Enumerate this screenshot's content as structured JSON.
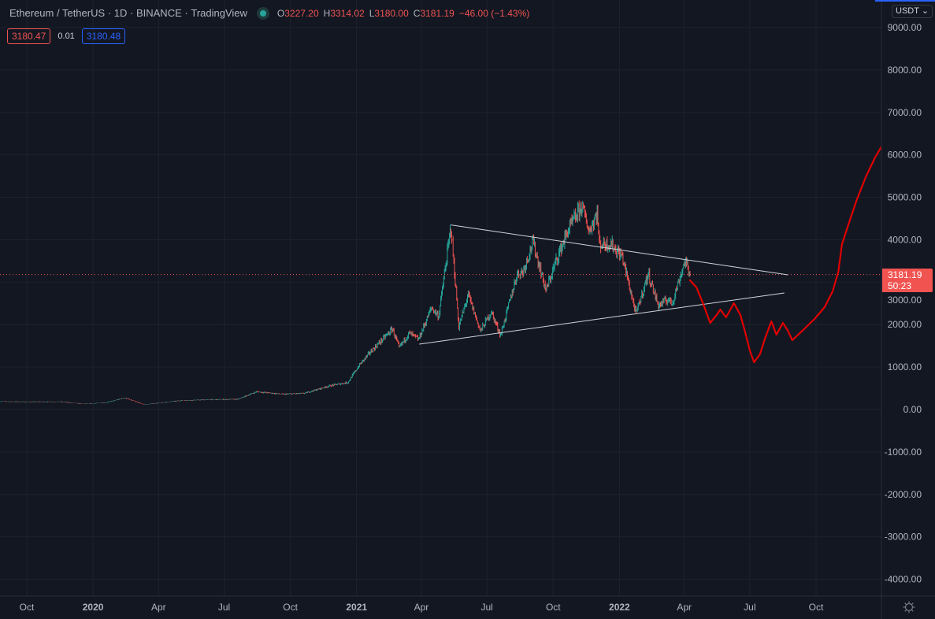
{
  "header": {
    "symbol": "Ethereum / TetherUS",
    "interval": "1D",
    "exchange": "BINANCE",
    "source": "TradingView",
    "sep": "·",
    "ohlc": {
      "o_label": "O",
      "o": "3227.20",
      "h_label": "H",
      "h": "3314.02",
      "l_label": "L",
      "l": "3180.00",
      "c_label": "C",
      "c": "3181.19"
    },
    "change": "−46.00 (−1.43%)"
  },
  "quotes": {
    "sell": "3180.47",
    "spread": "0.01",
    "buy": "3180.48"
  },
  "currency_button": "USDT",
  "last_price": {
    "price": "3181.19",
    "countdown": "50:23"
  },
  "colors": {
    "bg": "#131722",
    "up": "#26a69a",
    "down": "#ef5350",
    "forecast": "#e00000",
    "trend": "#d1d4dc"
  },
  "chart_data": {
    "type": "candlestick",
    "title": "Ethereum / TetherUS 1D BINANCE",
    "y_ticks": [
      "9000.00",
      "8000.00",
      "7000.00",
      "6000.00",
      "5000.00",
      "4000.00",
      "3000.00",
      "2000.00",
      "1000.00",
      "0.00",
      "-1000.00",
      "-2000.00",
      "-3000.00",
      "-4000.00"
    ],
    "y_tick_values": [
      9000,
      8000,
      7000,
      6000,
      5000,
      4000,
      3000,
      2000,
      1000,
      0,
      -1000,
      -2000,
      -3000,
      -4000
    ],
    "x_ticks": [
      {
        "label": "Oct",
        "date": "2019-10-01"
      },
      {
        "label": "2020",
        "date": "2020-01-01"
      },
      {
        "label": "Apr",
        "date": "2020-04-01"
      },
      {
        "label": "Jul",
        "date": "2020-07-01"
      },
      {
        "label": "Oct",
        "date": "2020-10-01"
      },
      {
        "label": "2021",
        "date": "2021-01-01"
      },
      {
        "label": "Apr",
        "date": "2021-04-01"
      },
      {
        "label": "Jul",
        "date": "2021-07-01"
      },
      {
        "label": "Oct",
        "date": "2021-10-01"
      },
      {
        "label": "2022",
        "date": "2022-01-01"
      },
      {
        "label": "Apr",
        "date": "2022-04-01"
      },
      {
        "label": "Jul",
        "date": "2022-07-01"
      },
      {
        "label": "Oct",
        "date": "2022-10-01"
      }
    ],
    "ylim": [
      -4300,
      9300
    ],
    "xlim": [
      "2019-08-24",
      "2023-01-01"
    ],
    "price_path": [
      [
        "2019-08-24",
        190
      ],
      [
        "2019-10-01",
        180
      ],
      [
        "2019-11-15",
        185
      ],
      [
        "2019-12-20",
        130
      ],
      [
        "2020-01-20",
        165
      ],
      [
        "2020-02-14",
        275
      ],
      [
        "2020-03-12",
        115
      ],
      [
        "2020-05-01",
        210
      ],
      [
        "2020-06-15",
        235
      ],
      [
        "2020-07-20",
        240
      ],
      [
        "2020-08-15",
        420
      ],
      [
        "2020-09-20",
        360
      ],
      [
        "2020-10-20",
        380
      ],
      [
        "2020-11-25",
        560
      ],
      [
        "2020-12-20",
        640
      ],
      [
        "2021-01-05",
        1050
      ],
      [
        "2021-01-20",
        1350
      ],
      [
        "2021-02-20",
        1900
      ],
      [
        "2021-03-01",
        1450
      ],
      [
        "2021-03-15",
        1800
      ],
      [
        "2021-03-28",
        1650
      ],
      [
        "2021-04-15",
        2400
      ],
      [
        "2021-04-25",
        2200
      ],
      [
        "2021-05-12",
        4300
      ],
      [
        "2021-05-23",
        1950
      ],
      [
        "2021-06-05",
        2700
      ],
      [
        "2021-06-22",
        1850
      ],
      [
        "2021-07-07",
        2300
      ],
      [
        "2021-07-20",
        1750
      ],
      [
        "2021-08-12",
        3200
      ],
      [
        "2021-08-20",
        3250
      ],
      [
        "2021-09-03",
        3950
      ],
      [
        "2021-09-21",
        2800
      ],
      [
        "2021-10-05",
        3500
      ],
      [
        "2021-10-21",
        4200
      ],
      [
        "2021-11-10",
        4800
      ],
      [
        "2021-11-20",
        4200
      ],
      [
        "2021-12-01",
        4650
      ],
      [
        "2021-12-04",
        3900
      ],
      [
        "2021-12-20",
        3900
      ],
      [
        "2022-01-05",
        3600
      ],
      [
        "2022-01-24",
        2250
      ],
      [
        "2022-02-10",
        3200
      ],
      [
        "2022-02-24",
        2450
      ],
      [
        "2022-03-10",
        2600
      ],
      [
        "2022-03-15",
        2500
      ],
      [
        "2022-04-02",
        3500
      ],
      [
        "2022-04-09",
        3181.19
      ]
    ],
    "trendlines": [
      {
        "name": "upper",
        "from": [
          "2021-05-12",
          4350
        ],
        "to": [
          "2022-08-23",
          3173
        ]
      },
      {
        "name": "lower",
        "from": [
          "2021-03-29",
          1540
        ],
        "to": [
          "2022-08-18",
          2746
        ]
      }
    ],
    "forecast": [
      [
        "2022-04-08",
        3062
      ],
      [
        "2022-04-18",
        2876
      ],
      [
        "2022-04-27",
        2505
      ],
      [
        "2022-05-07",
        2041
      ],
      [
        "2022-05-16",
        2227
      ],
      [
        "2022-05-21",
        2357
      ],
      [
        "2022-05-29",
        2171
      ],
      [
        "2022-06-09",
        2505
      ],
      [
        "2022-06-18",
        2227
      ],
      [
        "2022-06-24",
        1856
      ],
      [
        "2022-07-01",
        1392
      ],
      [
        "2022-07-07",
        1113
      ],
      [
        "2022-07-15",
        1299
      ],
      [
        "2022-07-22",
        1670
      ],
      [
        "2022-07-31",
        2078
      ],
      [
        "2022-08-07",
        1763
      ],
      [
        "2022-08-16",
        2041
      ],
      [
        "2022-08-23",
        1856
      ],
      [
        "2022-08-29",
        1633
      ],
      [
        "2022-09-12",
        1856
      ],
      [
        "2022-09-29",
        2134
      ],
      [
        "2022-10-13",
        2412
      ],
      [
        "2022-10-24",
        2783
      ],
      [
        "2022-11-01",
        3247
      ],
      [
        "2022-11-06",
        3897
      ],
      [
        "2022-11-15",
        4361
      ],
      [
        "2022-11-26",
        4917
      ],
      [
        "2022-12-09",
        5474
      ],
      [
        "2022-12-22",
        5938
      ],
      [
        "2023-01-02",
        6254
      ]
    ],
    "last_price": 3181.19
  }
}
